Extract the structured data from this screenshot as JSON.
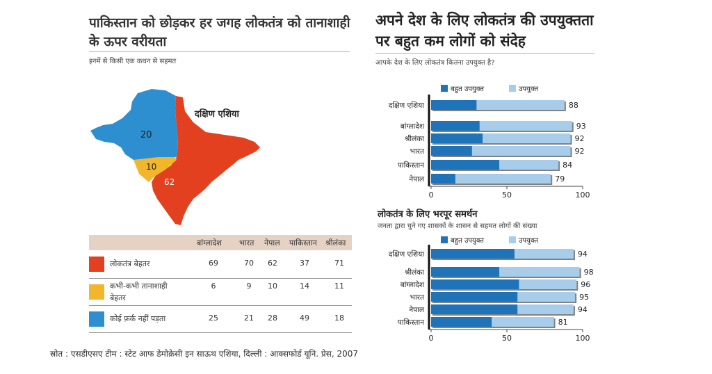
{
  "left": {
    "title_line1": "पाकिस्तान को छोड़कर हर जगह लोकतंत्र को तानाशाही",
    "title_line2": "के ऊपर वरीयता",
    "subtitle": "इनमें से किसी एक कथन से सहमत",
    "map_region_label": "दक्षिण एशिया",
    "map_values": {
      "blue": "20",
      "yellow": "10",
      "red": "62"
    },
    "colors": {
      "red": "#e2401f",
      "yellow": "#f2b62c",
      "blue": "#2e8fd0"
    },
    "table": {
      "columns": [
        "बांग्लादेश",
        "भारत",
        "नेपाल",
        "पाकिस्तान",
        "श्रीलंका"
      ],
      "rows": [
        {
          "label": "लोकतंत्र बेहतर",
          "values": [
            "69",
            "70",
            "62",
            "37",
            "71"
          ]
        },
        {
          "label_line1": "कभी-कभी तानाशाही",
          "label_line2": "बेहतर",
          "values": [
            "6",
            "9",
            "10",
            "14",
            "11"
          ]
        },
        {
          "label": "कोई फ़र्क नहीं पड़ता",
          "values": [
            "25",
            "21",
            "28",
            "49",
            "18"
          ]
        }
      ]
    }
  },
  "right": {
    "title_line1": "अपने देश के लिए लोकतंत्र की उपयुक्तता",
    "title_line2": "पर बहुत कम लोगों को संदेह",
    "subtitle": "आपके देश के लिए लोकतंत्र कितना उपयुक्त है?",
    "bottom_title": "लोकतंत्र के लिए भरपूर समर्थन",
    "bottom_subtitle": "जनता द्वारा चुने गए शासकों के शासन से सहमत लोगों की संख्या"
  },
  "chart_data": [
    {
      "type": "bar",
      "orientation": "horizontal",
      "stacked": true,
      "categories": [
        "दक्षिण एशिया",
        "बांग्लादेश",
        "श्रीलंका",
        "भारत",
        "पाकिस्तान",
        "नेपाल"
      ],
      "series": [
        {
          "name": "बहुत उपयुक्त",
          "color": "#1f73b8",
          "values": [
            30,
            32,
            34,
            27,
            45,
            16
          ]
        },
        {
          "name": "उपयुक्त",
          "color": "#a7cdea",
          "values": [
            58,
            61,
            58,
            65,
            39,
            63
          ]
        }
      ],
      "totals": [
        "88",
        "93",
        "92",
        "92",
        "84",
        "79"
      ],
      "xlim": [
        0,
        100
      ],
      "xticks": [
        "0",
        "50",
        "100"
      ]
    },
    {
      "type": "bar",
      "orientation": "horizontal",
      "stacked": true,
      "categories": [
        "दक्षिण एशिया",
        "श्रीलंका",
        "बांग्लादेश",
        "भारत",
        "नेपाल",
        "पाकिस्तान"
      ],
      "series": [
        {
          "name": "बहुत उपयुक्त",
          "color": "#1f73b8",
          "values": [
            55,
            45,
            58,
            57,
            57,
            40
          ]
        },
        {
          "name": "उपयुक्त",
          "color": "#a7cdea",
          "values": [
            39,
            53,
            38,
            38,
            37,
            41
          ]
        }
      ],
      "totals": [
        "94",
        "98",
        "96",
        "95",
        "94",
        "81"
      ],
      "xlim": [
        0,
        100
      ],
      "xticks": [
        "0",
        "50",
        "100"
      ]
    }
  ],
  "source": "स्रोत : एसडीएसए टीम : स्टेट आफ डेमोक्रेसी इन साऊथ एशिया, दिल्ली : आक्सफोर्ड यूनि. प्रेस, 2007"
}
